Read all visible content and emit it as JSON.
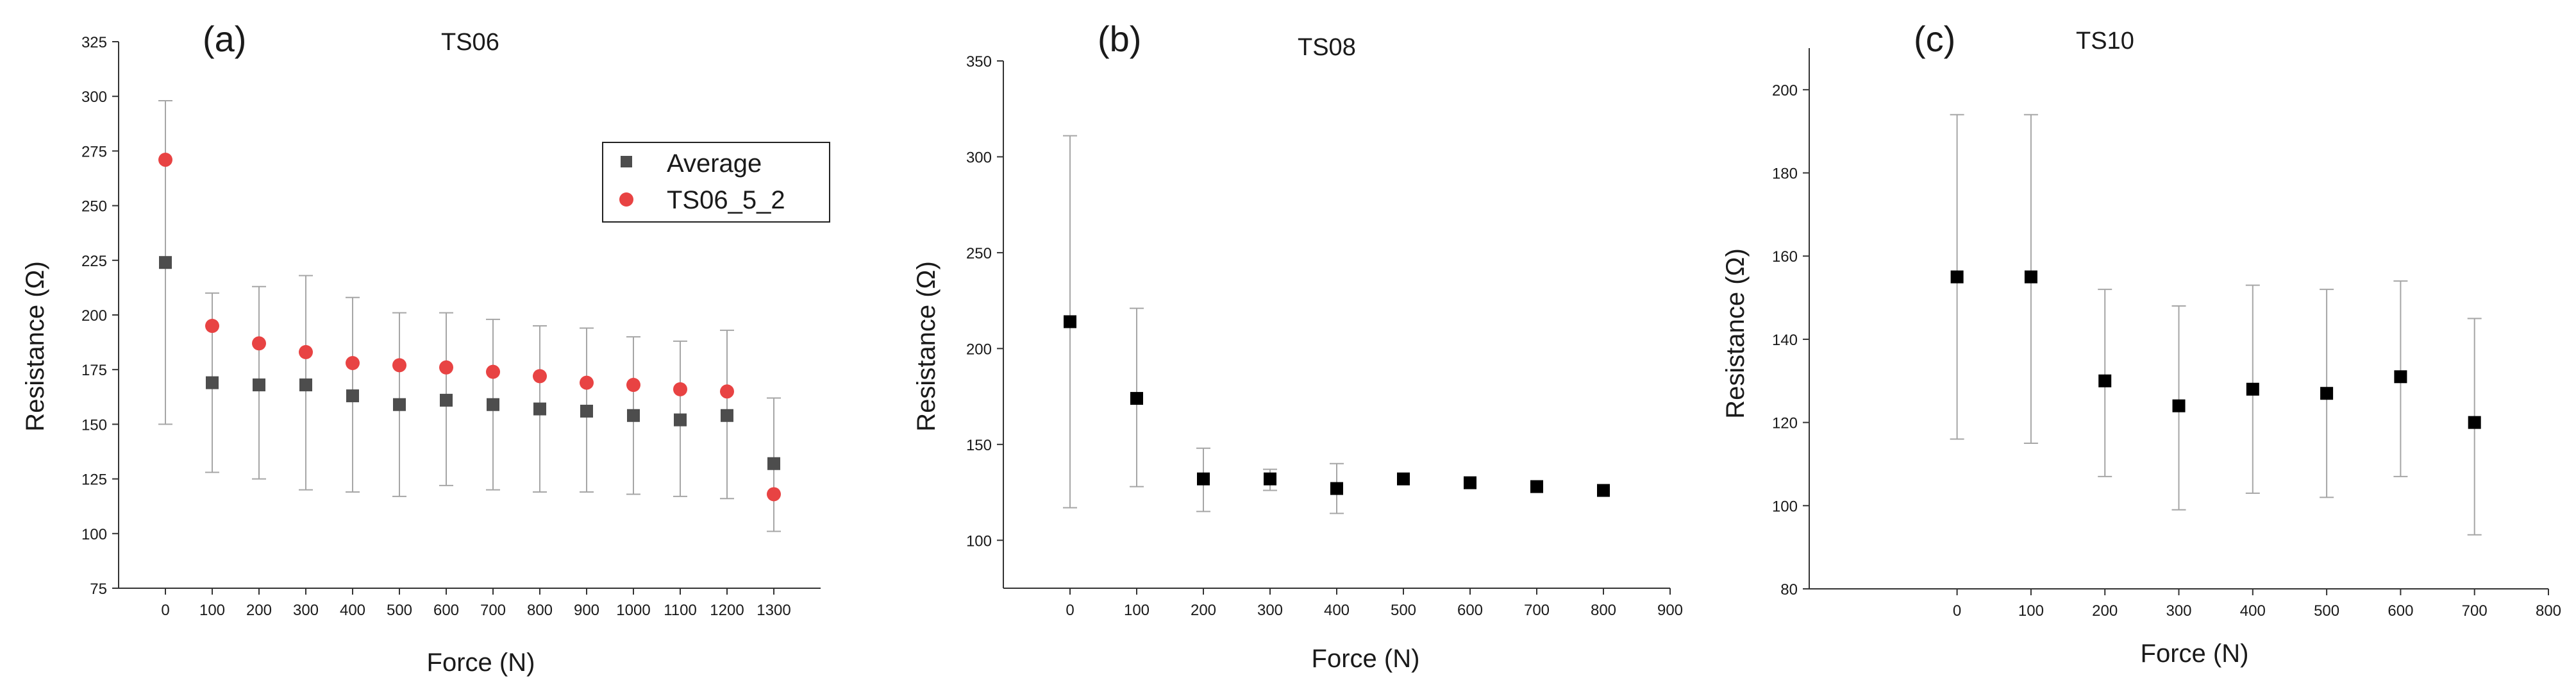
{
  "chart_data": [
    {
      "type": "scatter",
      "panel_label": "(a)",
      "title": "TS06",
      "xlabel": "Force (N)",
      "ylabel": "Resistance (Ω)",
      "xlim": [
        -100,
        1400
      ],
      "ylim": [
        75,
        325
      ],
      "xticks": [
        "0",
        "100",
        "200",
        "300",
        "400",
        "500",
        "600",
        "700",
        "800",
        "900",
        "1000",
        "1100",
        "1200",
        "1300"
      ],
      "yticks": [
        "75",
        "100",
        "125",
        "150",
        "175",
        "200",
        "225",
        "250",
        "275",
        "300",
        "325"
      ],
      "legend": {
        "placement": "top-right",
        "entries": [
          "Average",
          "TS06_5_2"
        ]
      },
      "series": [
        {
          "name": "Average",
          "marker": "square",
          "color": "#4d4d4d",
          "x": [
            0,
            100,
            200,
            300,
            400,
            500,
            600,
            700,
            800,
            900,
            1000,
            1100,
            1200,
            1300
          ],
          "y": [
            224,
            169,
            168,
            168,
            163,
            159,
            161,
            159,
            157,
            156,
            154,
            152,
            154,
            132
          ],
          "err_low": [
            150,
            128,
            125,
            120,
            119,
            117,
            122,
            120,
            119,
            119,
            118,
            117,
            116,
            101
          ],
          "err_high": [
            298,
            210,
            213,
            218,
            208,
            201,
            201,
            198,
            195,
            194,
            190,
            188,
            193,
            162
          ]
        },
        {
          "name": "TS06_5_2",
          "marker": "circle",
          "color": "#e84343",
          "x": [
            0,
            100,
            200,
            300,
            400,
            500,
            600,
            700,
            800,
            900,
            1000,
            1100,
            1200,
            1300
          ],
          "y": [
            271,
            195,
            187,
            183,
            178,
            177,
            176,
            174,
            172,
            169,
            168,
            166,
            165,
            118
          ]
        }
      ]
    },
    {
      "type": "scatter",
      "panel_label": "(b)",
      "title": "TS08",
      "xlabel": "Force (N)",
      "ylabel": "Resistance (Ω)",
      "xlim": [
        -100,
        900
      ],
      "ylim": [
        75,
        350
      ],
      "xticks": [
        "0",
        "100",
        "200",
        "300",
        "400",
        "500",
        "600",
        "700",
        "800",
        "900"
      ],
      "yticks": [
        "100",
        "150",
        "200",
        "250",
        "300",
        "350"
      ],
      "series": [
        {
          "marker": "square",
          "color": "#000000",
          "x": [
            0,
            100,
            200,
            300,
            400,
            500,
            600,
            700,
            800
          ],
          "y": [
            214,
            174,
            132,
            132,
            127,
            132,
            130,
            128,
            126
          ],
          "err_low": [
            117,
            128,
            115,
            126,
            114,
            null,
            null,
            null,
            null
          ],
          "err_high": [
            311,
            221,
            148,
            137,
            140,
            null,
            null,
            null,
            null
          ]
        }
      ]
    },
    {
      "type": "scatter",
      "panel_label": "(c)",
      "title": "TS10",
      "xlabel": "Force (N)",
      "ylabel": "Resistance (Ω)",
      "xlim": [
        -200,
        800
      ],
      "ylim": [
        80,
        210
      ],
      "xticks": [
        "0",
        "100",
        "200",
        "300",
        "400",
        "500",
        "600",
        "700",
        "800"
      ],
      "yticks": [
        "80",
        "100",
        "120",
        "140",
        "160",
        "180",
        "200"
      ],
      "series": [
        {
          "marker": "square",
          "color": "#000000",
          "x": [
            0,
            100,
            200,
            300,
            400,
            500,
            600,
            700
          ],
          "y": [
            155,
            155,
            130,
            124,
            128,
            127,
            131,
            120
          ],
          "err_low": [
            116,
            115,
            107,
            99,
            103,
            102,
            107,
            93
          ],
          "err_high": [
            194,
            194,
            152,
            148,
            153,
            152,
            154,
            145
          ]
        }
      ]
    }
  ]
}
